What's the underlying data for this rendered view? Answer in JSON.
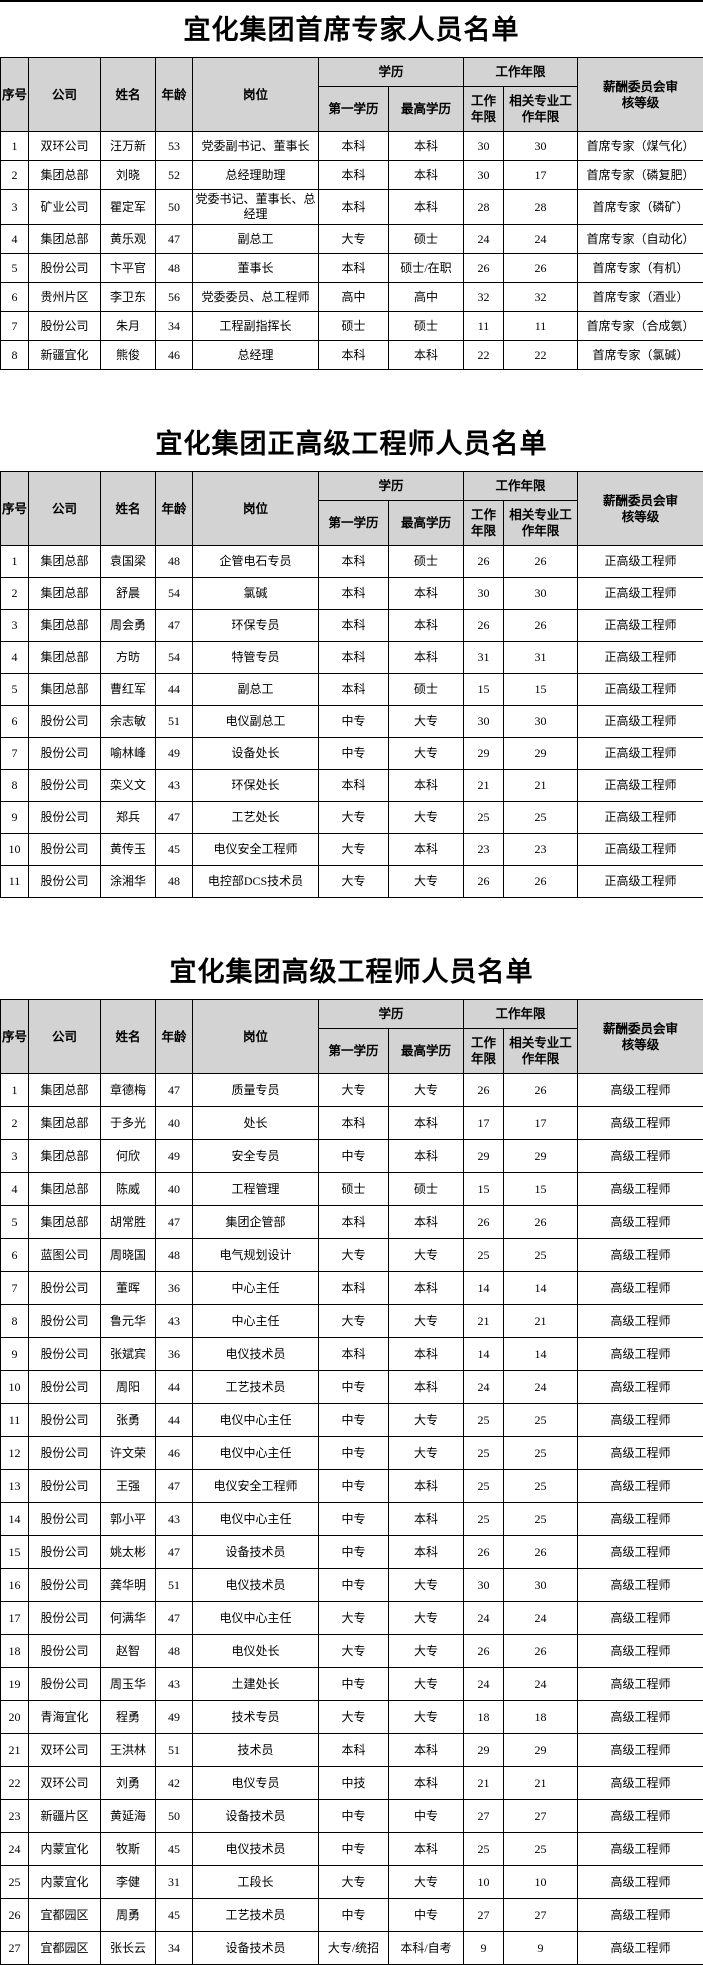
{
  "colors": {
    "header_bg": "#d3d3d3",
    "border": "#000000",
    "page_bg": "#ffffff",
    "text": "#000000"
  },
  "header": {
    "no": "序号",
    "company": "公司",
    "name": "姓名",
    "age": "年龄",
    "position": "岗位",
    "education_group": "学历",
    "first_education": "第一学历",
    "highest_education": "最高学历",
    "work_years_group": "工作年限",
    "work_years": "工作年限",
    "related_work_years": "相关专业工作年限",
    "review_level": "薪酬委员会审核等级"
  },
  "tables": [
    {
      "title": "宜化集团首席专家人员名单",
      "rows": [
        [
          "1",
          "双环公司",
          "汪万新",
          "53",
          "党委副书记、董事长",
          "本科",
          "本科",
          "30",
          "30",
          "首席专家（煤气化）"
        ],
        [
          "2",
          "集团总部",
          "刘晓",
          "52",
          "总经理助理",
          "本科",
          "本科",
          "30",
          "17",
          "首席专家（磷复肥）"
        ],
        [
          "3",
          "矿业公司",
          "瞿定军",
          "50",
          "党委书记、董事长、总经理",
          "本科",
          "本科",
          "28",
          "28",
          "首席专家（磷矿）"
        ],
        [
          "4",
          "集团总部",
          "黄乐观",
          "47",
          "副总工",
          "大专",
          "硕士",
          "24",
          "24",
          "首席专家（自动化）"
        ],
        [
          "5",
          "股份公司",
          "卞平官",
          "48",
          "董事长",
          "本科",
          "硕士/在职",
          "26",
          "26",
          "首席专家（有机）"
        ],
        [
          "6",
          "贵州片区",
          "李卫东",
          "56",
          "党委委员、总工程师",
          "高中",
          "高中",
          "32",
          "32",
          "首席专家（酒业）"
        ],
        [
          "7",
          "股份公司",
          "朱月",
          "34",
          "工程副指挥长",
          "硕士",
          "硕士",
          "11",
          "11",
          "首席专家（合成氨）"
        ],
        [
          "8",
          "新疆宜化",
          "熊俊",
          "46",
          "总经理",
          "本科",
          "本科",
          "22",
          "22",
          "首席专家（氯碱）"
        ]
      ]
    },
    {
      "title": "宜化集团正高级工程师人员名单",
      "rows": [
        [
          "1",
          "集团总部",
          "袁国梁",
          "48",
          "企管电石专员",
          "本科",
          "硕士",
          "26",
          "26",
          "正高级工程师"
        ],
        [
          "2",
          "集团总部",
          "舒晨",
          "54",
          "氯碱",
          "本科",
          "本科",
          "30",
          "30",
          "正高级工程师"
        ],
        [
          "3",
          "集团总部",
          "周会勇",
          "47",
          "环保专员",
          "本科",
          "本科",
          "26",
          "26",
          "正高级工程师"
        ],
        [
          "4",
          "集团总部",
          "方昉",
          "54",
          "特管专员",
          "本科",
          "本科",
          "31",
          "31",
          "正高级工程师"
        ],
        [
          "5",
          "集团总部",
          "曹红军",
          "44",
          "副总工",
          "本科",
          "硕士",
          "15",
          "15",
          "正高级工程师"
        ],
        [
          "6",
          "股份公司",
          "余志敏",
          "51",
          "电仪副总工",
          "中专",
          "大专",
          "30",
          "30",
          "正高级工程师"
        ],
        [
          "7",
          "股份公司",
          "喻林峰",
          "49",
          "设备处长",
          "中专",
          "大专",
          "29",
          "29",
          "正高级工程师"
        ],
        [
          "8",
          "股份公司",
          "栾义文",
          "43",
          "环保处长",
          "本科",
          "本科",
          "21",
          "21",
          "正高级工程师"
        ],
        [
          "9",
          "股份公司",
          "郑兵",
          "47",
          "工艺处长",
          "大专",
          "大专",
          "25",
          "25",
          "正高级工程师"
        ],
        [
          "10",
          "股份公司",
          "黄传玉",
          "45",
          "电仪安全工程师",
          "大专",
          "本科",
          "23",
          "23",
          "正高级工程师"
        ],
        [
          "11",
          "股份公司",
          "涂湘华",
          "48",
          "电控部DCS技术员",
          "大专",
          "大专",
          "26",
          "26",
          "正高级工程师"
        ]
      ]
    },
    {
      "title": "宜化集团高级工程师人员名单",
      "rows": [
        [
          "1",
          "集团总部",
          "章德梅",
          "47",
          "质量专员",
          "大专",
          "大专",
          "26",
          "26",
          "高级工程师"
        ],
        [
          "2",
          "集团总部",
          "于多光",
          "40",
          "处长",
          "本科",
          "本科",
          "17",
          "17",
          "高级工程师"
        ],
        [
          "3",
          "集团总部",
          "何欣",
          "49",
          "安全专员",
          "中专",
          "本科",
          "29",
          "29",
          "高级工程师"
        ],
        [
          "4",
          "集团总部",
          "陈威",
          "40",
          "工程管理",
          "硕士",
          "硕士",
          "15",
          "15",
          "高级工程师"
        ],
        [
          "5",
          "集团总部",
          "胡常胜",
          "47",
          "集团企管部",
          "本科",
          "本科",
          "26",
          "26",
          "高级工程师"
        ],
        [
          "6",
          "蓝图公司",
          "周晓国",
          "48",
          "电气规划设计",
          "大专",
          "大专",
          "25",
          "25",
          "高级工程师"
        ],
        [
          "7",
          "股份公司",
          "董晖",
          "36",
          "中心主任",
          "本科",
          "本科",
          "14",
          "14",
          "高级工程师"
        ],
        [
          "8",
          "股份公司",
          "鲁元华",
          "43",
          "中心主任",
          "大专",
          "大专",
          "21",
          "21",
          "高级工程师"
        ],
        [
          "9",
          "股份公司",
          "张斌宾",
          "36",
          "电仪技术员",
          "本科",
          "本科",
          "14",
          "14",
          "高级工程师"
        ],
        [
          "10",
          "股份公司",
          "周阳",
          "44",
          "工艺技术员",
          "中专",
          "本科",
          "24",
          "24",
          "高级工程师"
        ],
        [
          "11",
          "股份公司",
          "张勇",
          "44",
          "电仪中心主任",
          "中专",
          "大专",
          "25",
          "25",
          "高级工程师"
        ],
        [
          "12",
          "股份公司",
          "许文荣",
          "46",
          "电仪中心主任",
          "中专",
          "大专",
          "25",
          "25",
          "高级工程师"
        ],
        [
          "13",
          "股份公司",
          "王强",
          "47",
          "电仪安全工程师",
          "中专",
          "本科",
          "25",
          "25",
          "高级工程师"
        ],
        [
          "14",
          "股份公司",
          "郭小平",
          "43",
          "电仪中心主任",
          "中专",
          "本科",
          "25",
          "25",
          "高级工程师"
        ],
        [
          "15",
          "股份公司",
          "姚太彬",
          "47",
          "设备技术员",
          "中专",
          "本科",
          "26",
          "26",
          "高级工程师"
        ],
        [
          "16",
          "股份公司",
          "龚华明",
          "51",
          "电仪技术员",
          "中专",
          "大专",
          "30",
          "30",
          "高级工程师"
        ],
        [
          "17",
          "股份公司",
          "何满华",
          "47",
          "电仪中心主任",
          "大专",
          "大专",
          "24",
          "24",
          "高级工程师"
        ],
        [
          "18",
          "股份公司",
          "赵智",
          "48",
          "电仪处长",
          "大专",
          "大专",
          "26",
          "26",
          "高级工程师"
        ],
        [
          "19",
          "股份公司",
          "周玉华",
          "43",
          "土建处长",
          "中专",
          "大专",
          "24",
          "24",
          "高级工程师"
        ],
        [
          "20",
          "青海宜化",
          "程勇",
          "49",
          "技术专员",
          "大专",
          "大专",
          "18",
          "18",
          "高级工程师"
        ],
        [
          "21",
          "双环公司",
          "王洪林",
          "51",
          "技术员",
          "本科",
          "本科",
          "29",
          "29",
          "高级工程师"
        ],
        [
          "22",
          "双环公司",
          "刘勇",
          "42",
          "电仪专员",
          "中技",
          "本科",
          "21",
          "21",
          "高级工程师"
        ],
        [
          "23",
          "新疆片区",
          "黄延海",
          "50",
          "设备技术员",
          "中专",
          "中专",
          "27",
          "27",
          "高级工程师"
        ],
        [
          "24",
          "内蒙宜化",
          "牧斯",
          "45",
          "电仪技术员",
          "中专",
          "本科",
          "25",
          "25",
          "高级工程师"
        ],
        [
          "25",
          "内蒙宜化",
          "李健",
          "31",
          "工段长",
          "大专",
          "大专",
          "10",
          "10",
          "高级工程师"
        ],
        [
          "26",
          "宜都园区",
          "周勇",
          "45",
          "工艺技术员",
          "中专",
          "中专",
          "27",
          "27",
          "高级工程师"
        ],
        [
          "27",
          "宜都园区",
          "张长云",
          "34",
          "设备技术员",
          "大专/统招",
          "本科/自考",
          "9",
          "9",
          "高级工程师"
        ]
      ]
    }
  ]
}
